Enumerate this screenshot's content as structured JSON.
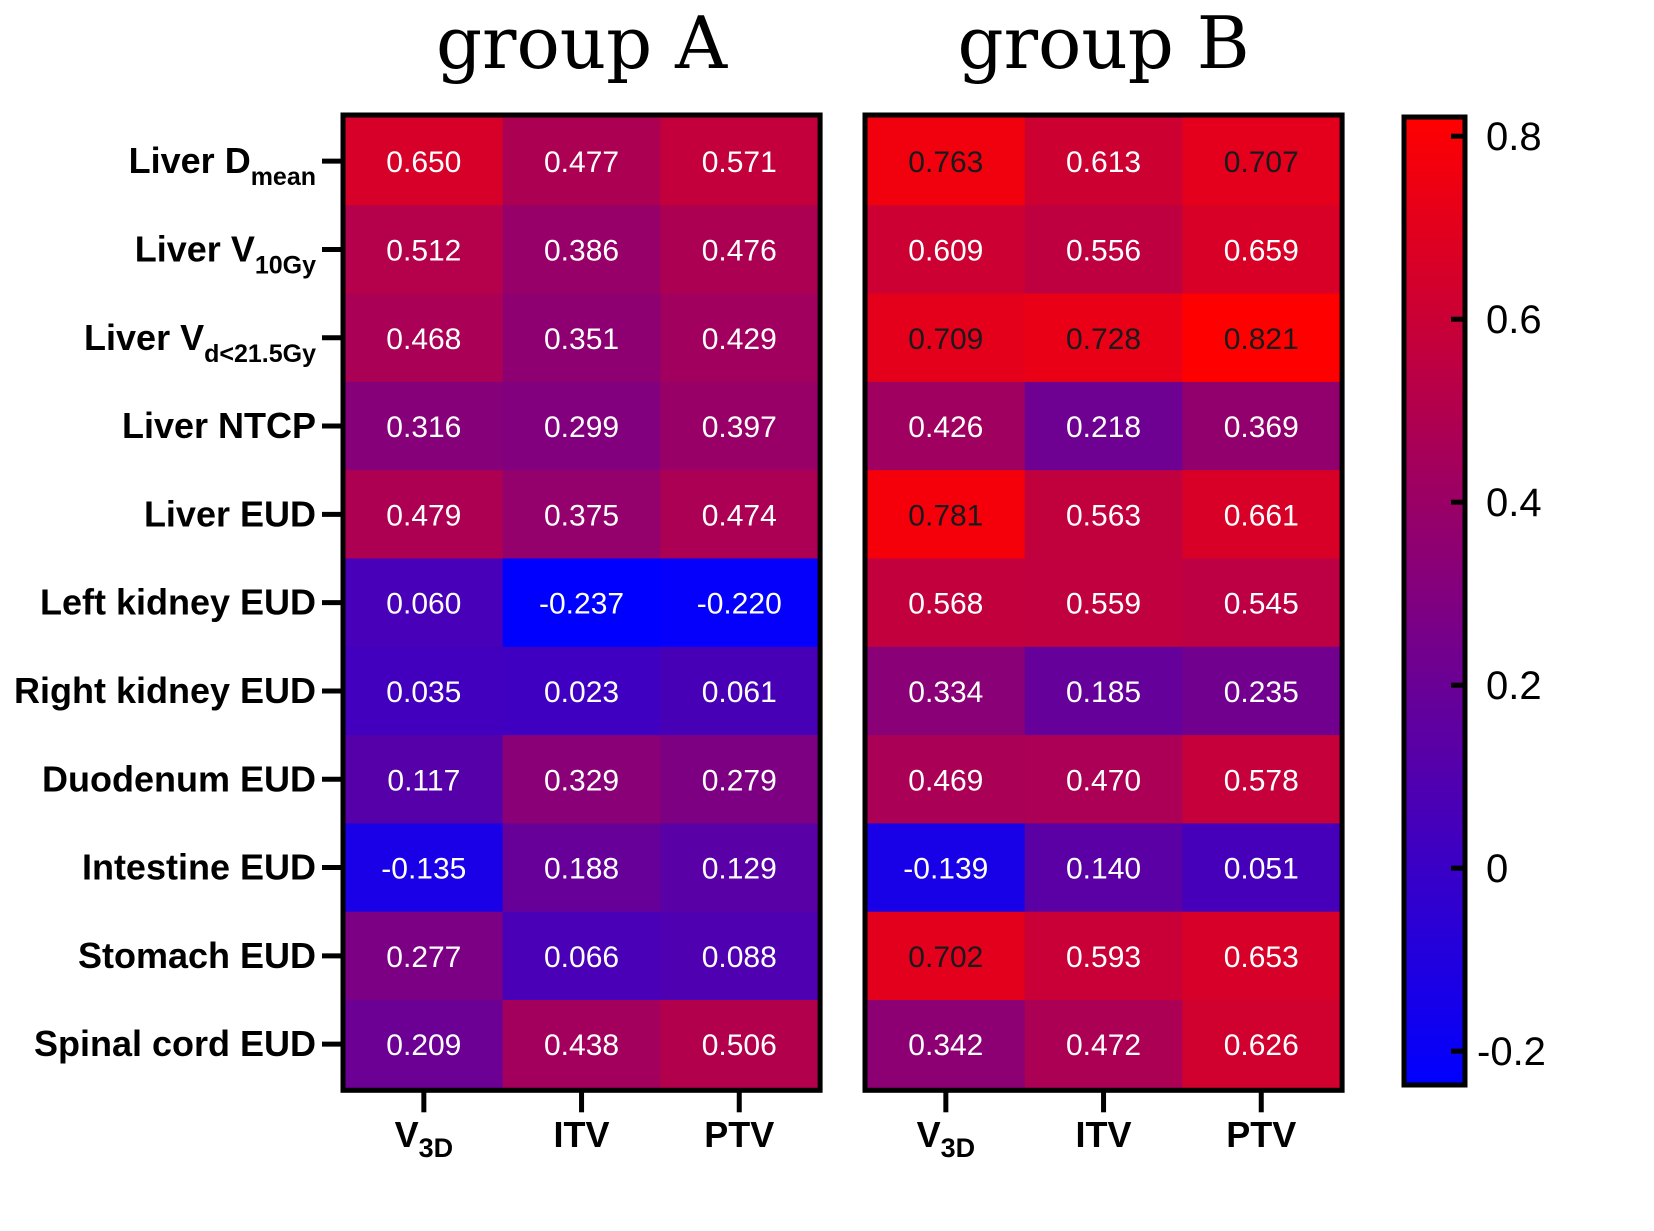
{
  "chart_data": {
    "type": "heatmap",
    "groups": [
      {
        "title": "group A",
        "columns": [
          {
            "main": "V",
            "sub": "3D"
          },
          {
            "main": "ITV",
            "sub": ""
          },
          {
            "main": "PTV",
            "sub": ""
          }
        ]
      },
      {
        "title": "group B",
        "columns": [
          {
            "main": "V",
            "sub": "3D"
          },
          {
            "main": "ITV",
            "sub": ""
          },
          {
            "main": "PTV",
            "sub": ""
          }
        ]
      }
    ],
    "rows": [
      {
        "main": "Liver D",
        "sub": "mean"
      },
      {
        "main": "Liver V",
        "sub": "10Gy"
      },
      {
        "main": "Liver V",
        "sub": "d<21.5Gy"
      },
      {
        "main": "Liver NTCP",
        "sub": ""
      },
      {
        "main": "Liver EUD",
        "sub": ""
      },
      {
        "main": "Left kidney EUD",
        "sub": ""
      },
      {
        "main": "Right kidney EUD",
        "sub": ""
      },
      {
        "main": "Duodenum EUD",
        "sub": ""
      },
      {
        "main": "Intestine EUD",
        "sub": ""
      },
      {
        "main": "Stomach EUD",
        "sub": ""
      },
      {
        "main": "Spinal cord EUD",
        "sub": ""
      }
    ],
    "values": {
      "group A": [
        [
          "0.650",
          "0.477",
          "0.571"
        ],
        [
          "0.512",
          "0.386",
          "0.476"
        ],
        [
          "0.468",
          "0.351",
          "0.429"
        ],
        [
          "0.316",
          "0.299",
          "0.397"
        ],
        [
          "0.479",
          "0.375",
          "0.474"
        ],
        [
          "0.060",
          "-0.237",
          "-0.220"
        ],
        [
          "0.035",
          "0.023",
          "0.061"
        ],
        [
          "0.117",
          "0.329",
          "0.279"
        ],
        [
          "-0.135",
          "0.188",
          "0.129"
        ],
        [
          "0.277",
          "0.066",
          "0.088"
        ],
        [
          "0.209",
          "0.438",
          "0.506"
        ]
      ],
      "group B": [
        [
          "0.763",
          "0.613",
          "0.707"
        ],
        [
          "0.609",
          "0.556",
          "0.659"
        ],
        [
          "0.709",
          "0.728",
          "0.821"
        ],
        [
          "0.426",
          "0.218",
          "0.369"
        ],
        [
          "0.781",
          "0.563",
          "0.661"
        ],
        [
          "0.568",
          "0.559",
          "0.545"
        ],
        [
          "0.334",
          "0.185",
          "0.235"
        ],
        [
          "0.469",
          "0.470",
          "0.578"
        ],
        [
          "-0.139",
          "0.140",
          "0.051"
        ],
        [
          "0.702",
          "0.593",
          "0.653"
        ],
        [
          "0.342",
          "0.472",
          "0.626"
        ]
      ]
    },
    "colorbar": {
      "min": -0.237,
      "max": 0.821,
      "low_color": "#0000ff",
      "mid_color": "#800080",
      "high_color": "#ff0000",
      "ticks": [
        {
          "value": -0.2,
          "label": "-0.2"
        },
        {
          "value": 0,
          "label": "0"
        },
        {
          "value": 0.2,
          "label": "0.2"
        },
        {
          "value": 0.4,
          "label": "0.4"
        },
        {
          "value": 0.6,
          "label": "0.6"
        },
        {
          "value": 0.8,
          "label": "0.8"
        }
      ]
    },
    "dark_text_threshold": 0.7
  }
}
